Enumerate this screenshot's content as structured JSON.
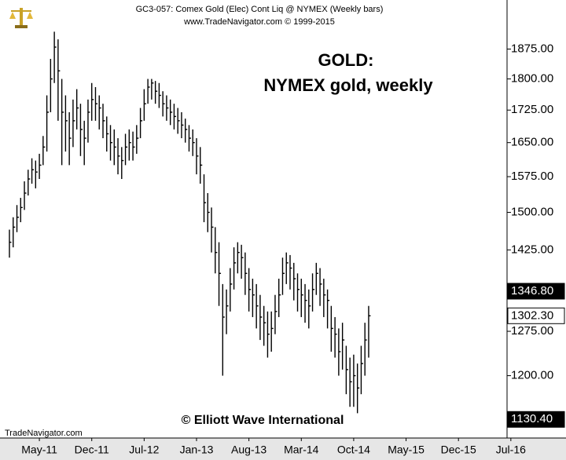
{
  "chart_data": {
    "type": "ohlc",
    "header": "GC3-057:  Comex Gold (Elec) Cont Liq @ NYMEX  (Weekly bars)",
    "subheader": "www.TradeNavigator.com © 1999-2015",
    "title": "GOLD:",
    "subtitle": "NYMEX gold, weekly",
    "copyright": "© Elliott Wave International",
    "source": "TradeNavigator.com",
    "color": "#000000",
    "log_scale": true,
    "grid": false,
    "ylim": [
      1102,
      2005
    ],
    "yticks": [
      {
        "value": 1875,
        "label": "1875.00"
      },
      {
        "value": 1800,
        "label": "1800.00"
      },
      {
        "value": 1725,
        "label": "1725.00"
      },
      {
        "value": 1650,
        "label": "1650.00"
      },
      {
        "value": 1575,
        "label": "1575.00"
      },
      {
        "value": 1500,
        "label": "1500.00"
      },
      {
        "value": 1425,
        "label": "1425.00"
      },
      {
        "value": 1275,
        "label": "1275.00"
      },
      {
        "value": 1200,
        "label": "1200.00"
      }
    ],
    "price_flags": [
      {
        "value": 1346.8,
        "label": "1346.80",
        "color": "#000000"
      },
      {
        "value": 1302.3,
        "label": "1302.30",
        "color": "#ffffff"
      },
      {
        "value": 1130.4,
        "label": "1130.40",
        "color": "#000000"
      }
    ],
    "categories": [
      null,
      null,
      null,
      null,
      null,
      null,
      null,
      null,
      "May-11",
      null,
      null,
      null,
      null,
      null,
      null,
      null,
      null,
      null,
      null,
      null,
      null,
      null,
      "Dec-11",
      null,
      null,
      null,
      null,
      null,
      null,
      null,
      null,
      null,
      null,
      null,
      null,
      null,
      "Jul-12",
      null,
      null,
      null,
      null,
      null,
      null,
      null,
      null,
      null,
      null,
      null,
      null,
      null,
      "Jan-13",
      null,
      null,
      null,
      null,
      null,
      null,
      null,
      null,
      null,
      null,
      null,
      null,
      null,
      "Aug-13",
      null,
      null,
      null,
      null,
      null,
      null,
      null,
      null,
      null,
      null,
      null,
      null,
      null,
      "Mar-14",
      null,
      null,
      null,
      null,
      null,
      null,
      null,
      null,
      null,
      null,
      null,
      null,
      null,
      "Oct-14",
      null,
      null,
      null,
      null,
      null,
      null,
      null,
      null,
      null,
      null,
      null,
      null,
      null,
      "May-15",
      null,
      null,
      null,
      null,
      null,
      null,
      null,
      null,
      null,
      null,
      null,
      null,
      null,
      "Dec-15",
      null,
      null,
      null,
      null,
      null,
      null,
      null,
      null,
      null,
      null,
      null,
      null,
      null,
      "Jul-16",
      null
    ],
    "high": [
      1465,
      1490,
      1515,
      1530,
      1565,
      1590,
      1615,
      1610,
      1625,
      1665,
      1760,
      1850,
      1920,
      1900,
      1800,
      1760,
      1720,
      1750,
      1775,
      1740,
      1700,
      1750,
      1790,
      1780,
      1760,
      1740,
      1710,
      1690,
      1680,
      1660,
      1640,
      1670,
      1680,
      1675,
      1690,
      1730,
      1775,
      1800,
      1800,
      1795,
      1790,
      1770,
      1760,
      1750,
      1740,
      1730,
      1720,
      1705,
      1690,
      1680,
      1660,
      1640,
      1580,
      1540,
      1510,
      1470,
      1440,
      1360,
      1350,
      1390,
      1430,
      1440,
      1435,
      1420,
      1390,
      1370,
      1360,
      1340,
      1320,
      1310,
      1310,
      1340,
      1370,
      1410,
      1420,
      1415,
      1400,
      1380,
      1370,
      1360,
      1350,
      1380,
      1400,
      1390,
      1370,
      1350,
      1320,
      1300,
      1280,
      1290,
      1250,
      1230,
      1235,
      1220,
      1250,
      1290,
      1320,
      null,
      null,
      null,
      null,
      null,
      null,
      null,
      null,
      null,
      null,
      null,
      null,
      null,
      null,
      null,
      null,
      null,
      null,
      null,
      null,
      null,
      null,
      null,
      null,
      null,
      null,
      null,
      null,
      null,
      null,
      null,
      null,
      null,
      null,
      null,
      null,
      null,
      null,
      null
    ],
    "low": [
      1410,
      1430,
      1460,
      1480,
      1505,
      1535,
      1560,
      1550,
      1570,
      1600,
      1630,
      1720,
      1790,
      1700,
      1600,
      1630,
      1600,
      1640,
      1680,
      1620,
      1600,
      1650,
      1700,
      1700,
      1680,
      1660,
      1630,
      1610,
      1600,
      1580,
      1570,
      1600,
      1610,
      1610,
      1625,
      1660,
      1700,
      1740,
      1750,
      1740,
      1730,
      1710,
      1700,
      1690,
      1680,
      1670,
      1660,
      1650,
      1630,
      1620,
      1580,
      1560,
      1480,
      1460,
      1420,
      1380,
      1320,
      1200,
      1270,
      1310,
      1350,
      1380,
      1370,
      1340,
      1310,
      1300,
      1280,
      1260,
      1250,
      1230,
      1240,
      1270,
      1300,
      1340,
      1360,
      1350,
      1330,
      1310,
      1300,
      1290,
      1280,
      1310,
      1340,
      1320,
      1300,
      1280,
      1240,
      1230,
      1200,
      1210,
      1170,
      1150,
      1150,
      1140,
      1170,
      1200,
      1230,
      null,
      null,
      null,
      null,
      null,
      null,
      null,
      null,
      null,
      null,
      null,
      null,
      null,
      null,
      null,
      null,
      null,
      null,
      null,
      null,
      null,
      null,
      null,
      null,
      null,
      null,
      null,
      null,
      null,
      null,
      null,
      null,
      null,
      null,
      null,
      null,
      null,
      null,
      null
    ],
    "close": [
      1440,
      1470,
      1490,
      1510,
      1540,
      1570,
      1590,
      1585,
      1600,
      1640,
      1720,
      1800,
      1880,
      1820,
      1720,
      1700,
      1660,
      1700,
      1730,
      1680,
      1660,
      1720,
      1750,
      1740,
      1730,
      1700,
      1670,
      1650,
      1640,
      1620,
      1610,
      1640,
      1650,
      1640,
      1660,
      1700,
      1740,
      1780,
      1790,
      1770,
      1760,
      1740,
      1730,
      1720,
      1710,
      1700,
      1690,
      1680,
      1660,
      1650,
      1620,
      1600,
      1520,
      1500,
      1470,
      1420,
      1380,
      1300,
      1320,
      1360,
      1400,
      1420,
      1410,
      1380,
      1350,
      1340,
      1320,
      1300,
      1290,
      1270,
      1280,
      1310,
      1340,
      1380,
      1400,
      1390,
      1370,
      1350,
      1340,
      1330,
      1320,
      1350,
      1380,
      1360,
      1340,
      1330,
      1280,
      1270,
      1240,
      1260,
      1210,
      1190,
      1200,
      1180,
      1220,
      1260,
      1302.3,
      null,
      null,
      null,
      null,
      null,
      null,
      null,
      null,
      null,
      null,
      null,
      null,
      null,
      null,
      null,
      null,
      null,
      null,
      null,
      null,
      null,
      null,
      null,
      null,
      null,
      null,
      null,
      null,
      null,
      null,
      null,
      null,
      null,
      null,
      null,
      null,
      null,
      null,
      null
    ]
  }
}
